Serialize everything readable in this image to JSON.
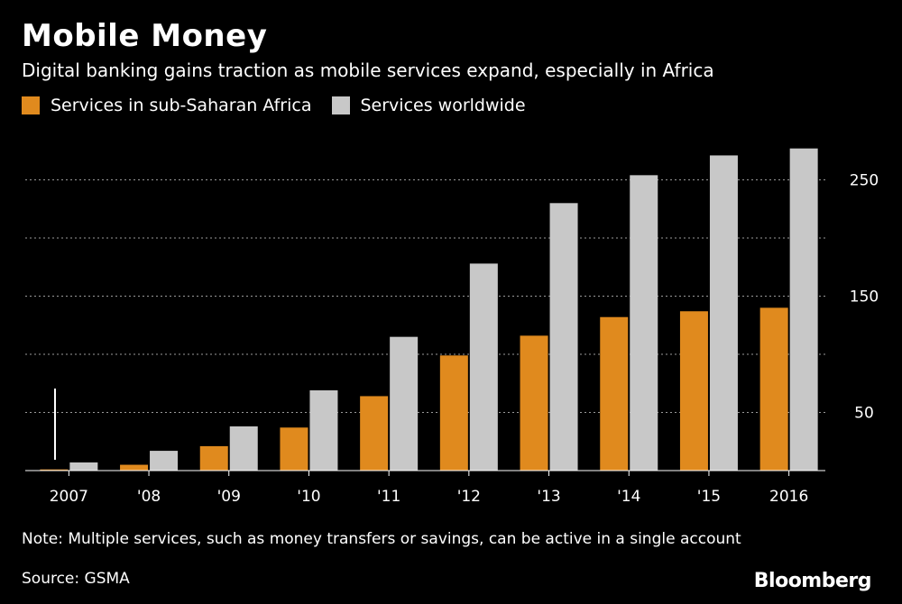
{
  "header": {
    "title": "Mobile Money",
    "subtitle": "Digital banking gains traction as mobile services expand, especially in Africa"
  },
  "legend": [
    {
      "label": "Services in sub-Saharan Africa",
      "color": "#e08a1e"
    },
    {
      "label": "Services worldwide",
      "color": "#c8c8c8"
    }
  ],
  "footer": {
    "note": "Note: Multiple services, such as money transfers or savings, can be active in a single account",
    "source": "Source: GSMA",
    "brand": "Bloomberg"
  },
  "chart_data": {
    "type": "bar",
    "title": "Mobile Money",
    "categories": [
      "2007",
      "'08",
      "'09",
      "'10",
      "'11",
      "'12",
      "'13",
      "'14",
      "'15",
      "2016"
    ],
    "series": [
      {
        "name": "Services in sub-Saharan Africa",
        "color": "#e08a1e",
        "values": [
          1,
          5,
          21,
          37,
          64,
          99,
          116,
          132,
          137,
          140
        ]
      },
      {
        "name": "Services worldwide",
        "color": "#c8c8c8",
        "values": [
          7,
          17,
          38,
          69,
          115,
          178,
          230,
          254,
          271,
          277
        ]
      }
    ],
    "ylim": [
      0,
      280
    ],
    "yticks": [
      50,
      150,
      250
    ],
    "gridlines": [
      50,
      100,
      150,
      200,
      250
    ],
    "grid": true,
    "xlabel": "",
    "ylabel": "",
    "axis_side": "right"
  }
}
